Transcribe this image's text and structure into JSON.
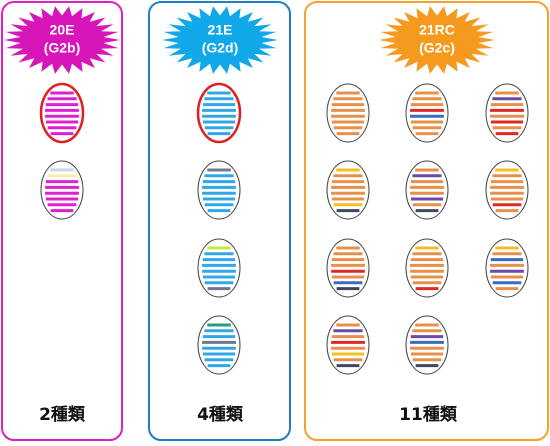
{
  "panels": [
    {
      "badge": [
        "20E",
        "(G2b)"
      ],
      "count": "2種類"
    },
    {
      "badge": [
        "21E",
        "(G2d)"
      ],
      "count": "4種類"
    },
    {
      "badge": [
        "21RC",
        "(G2c)"
      ],
      "count": "11種類"
    }
  ]
}
